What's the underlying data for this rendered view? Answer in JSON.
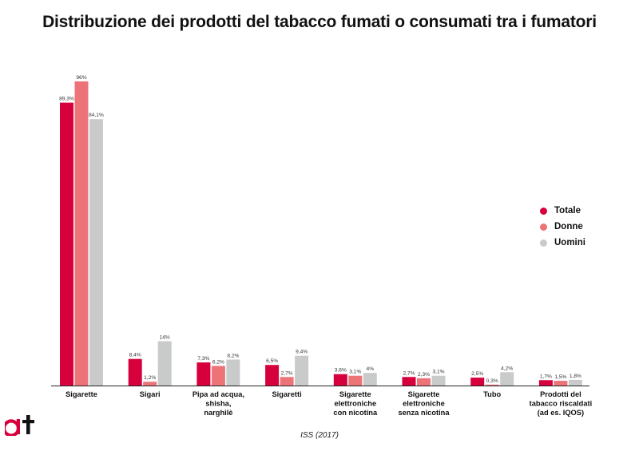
{
  "title": "Distribuzione dei prodotti del tabacco fumati o consumati tra i fumatori",
  "source": "ISS (2017)",
  "logo": {
    "name": "at"
  },
  "legend_placement": "right",
  "colors": {
    "Totale": "#d6003c",
    "Donne": "#ec7479",
    "Uomini": "#c8cbc9"
  },
  "chart_data": {
    "type": "bar",
    "title": "Distribuzione dei prodotti del tabacco fumati o consumati tra i fumatori",
    "ylim": [
      0,
      100
    ],
    "grid": false,
    "legend": "right",
    "categories": [
      [
        "Sigarette"
      ],
      [
        "Sigari"
      ],
      [
        "Pipa ad acqua,",
        "shisha,",
        "narghilè"
      ],
      [
        "Sigaretti"
      ],
      [
        "Sigarette",
        "elettroniche",
        "con nicotina"
      ],
      [
        "Sigarette",
        "elettroniche",
        "senza nicotina"
      ],
      [
        "Tubo"
      ],
      [
        "Prodotti del",
        "tabacco riscaldati",
        "(ad es. IQOS)"
      ]
    ],
    "series": [
      {
        "name": "Totale",
        "values": [
          89.3,
          8.4,
          7.3,
          6.5,
          3.6,
          2.7,
          2.5,
          1.7
        ],
        "labels": [
          "89,3%",
          "8,4%",
          "7,3%",
          "6,5%",
          "3,6%",
          "2,7%",
          "2,5%",
          "1,7%"
        ]
      },
      {
        "name": "Donne",
        "values": [
          96,
          1.2,
          6.2,
          2.7,
          3.1,
          2.3,
          0.3,
          1.5
        ],
        "labels": [
          "96%",
          "1,2%",
          "6,2%",
          "2,7%",
          "3,1%",
          "2,3%",
          "0,3%",
          "1,5%"
        ]
      },
      {
        "name": "Uomini",
        "values": [
          84.1,
          14,
          8.2,
          9.4,
          4,
          3.1,
          4.2,
          1.8
        ],
        "labels": [
          "84,1%",
          "14%",
          "8,2%",
          "9,4%",
          "4%",
          "3,1%",
          "4,2%",
          "1,8%"
        ]
      }
    ]
  }
}
